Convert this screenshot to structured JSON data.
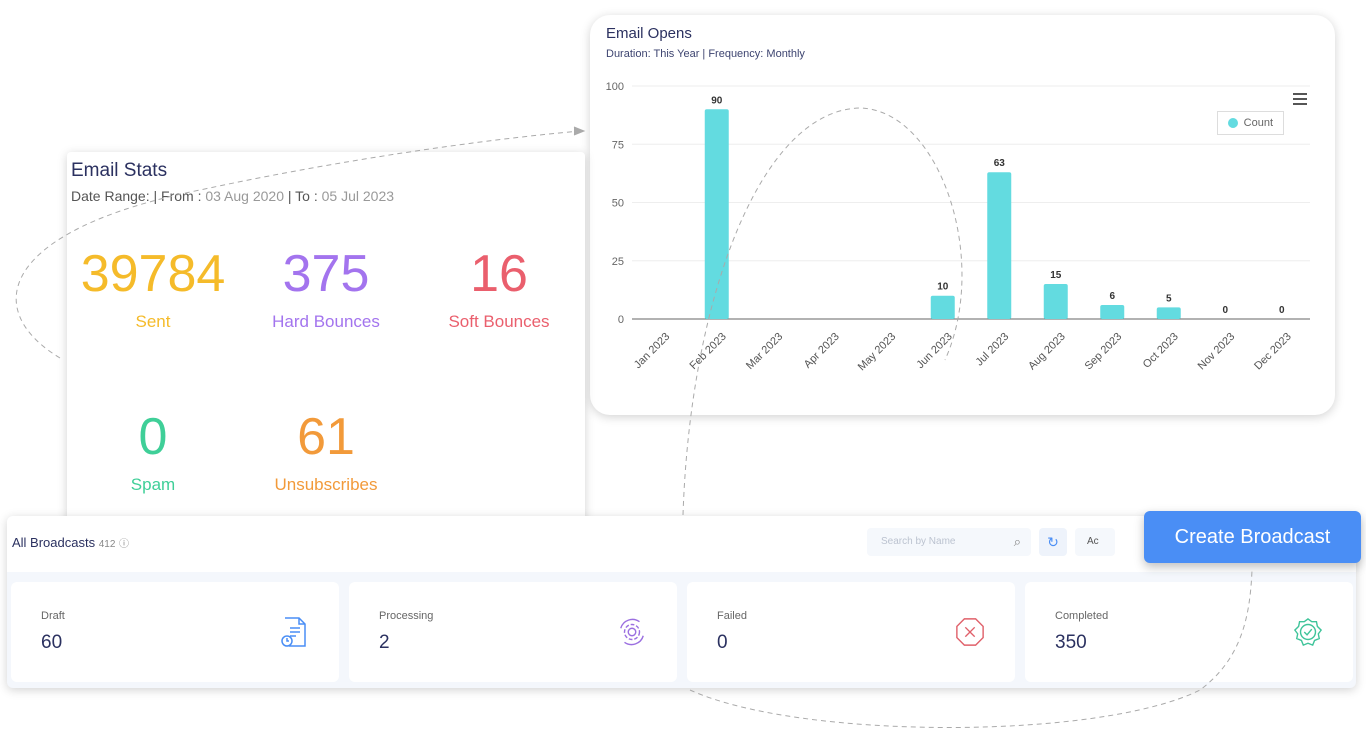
{
  "opens": {
    "title": "Email Opens",
    "subtitle": "Duration: This Year | Frequency: Monthly",
    "legend": "Count"
  },
  "chart_data": {
    "type": "bar",
    "title": "Email Opens",
    "categories": [
      "Jan 2023",
      "Feb 2023",
      "Mar 2023",
      "Apr 2023",
      "May 2023",
      "Jun 2023",
      "Jul 2023",
      "Aug 2023",
      "Sep 2023",
      "Oct 2023",
      "Nov 2023",
      "Dec 2023"
    ],
    "series": [
      {
        "name": "Count",
        "values": [
          null,
          90,
          null,
          null,
          null,
          10,
          63,
          15,
          6,
          5,
          0,
          0
        ]
      }
    ],
    "ylim": [
      0,
      100
    ],
    "yticks": [
      0,
      25,
      50,
      75,
      100
    ],
    "grid": true,
    "legend": "top-right",
    "color": "#63dbe0"
  },
  "stats": {
    "title": "Email Stats",
    "date_label": "Date Range: | From :",
    "from": "03 Aug 2020",
    "to_label": "| To :",
    "to": "05 Jul 2023",
    "items": [
      {
        "value": "39784",
        "label": "Sent",
        "color": "#f5bb2a"
      },
      {
        "value": "375",
        "label": "Hard Bounces",
        "color": "#a374ee"
      },
      {
        "value": "16",
        "label": "Soft Bounces",
        "color": "#ea5f6d"
      },
      {
        "value": "0",
        "label": "Spam",
        "color": "#3fcf98"
      },
      {
        "value": "61",
        "label": "Unsubscribes",
        "color": "#f29a3a"
      }
    ]
  },
  "broadcasts": {
    "title": "All Broadcasts",
    "count": "412",
    "search_placeholder": "Search by Name",
    "actions_label": "Ac",
    "create_label": "Create Broadcast",
    "tiles": [
      {
        "label": "Draft",
        "value": "60",
        "icon": "draft-document-icon",
        "color": "#4a8ef5"
      },
      {
        "label": "Processing",
        "value": "2",
        "icon": "processing-gear-icon",
        "color": "#9b6fe0"
      },
      {
        "label": "Failed",
        "value": "0",
        "icon": "failed-octagon-x-icon",
        "color": "#e0606a"
      },
      {
        "label": "Completed",
        "value": "350",
        "icon": "completed-badge-check-icon",
        "color": "#3fc49a"
      }
    ]
  }
}
